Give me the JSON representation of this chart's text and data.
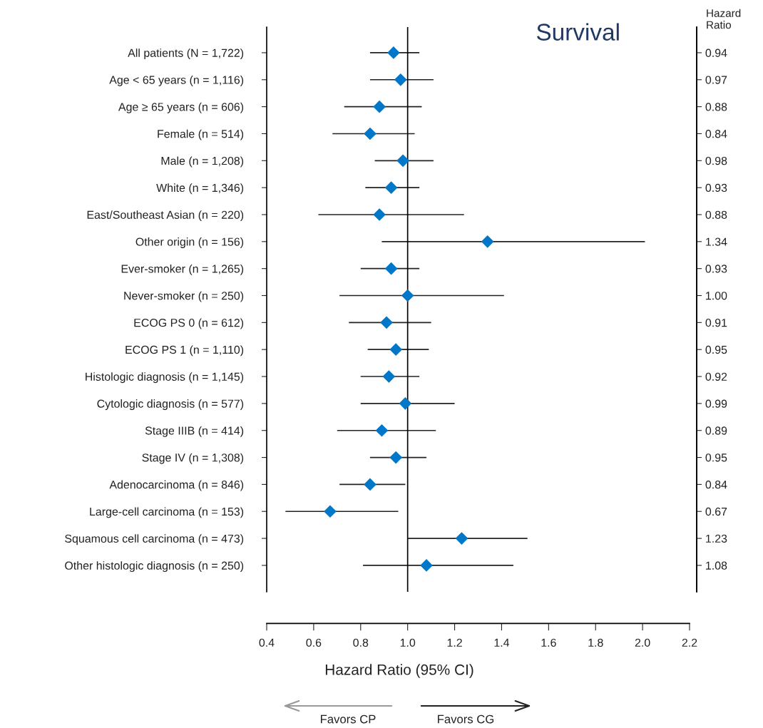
{
  "chart_data": {
    "type": "scatter",
    "orientation": "horizontal",
    "title": "Survival",
    "xlabel": "Hazard Ratio (95% CI)",
    "y2label": "Hazard\nRatio",
    "categories": [
      "All patients (N = 1,722)",
      "Age < 65 years (n = 1,116)",
      "Age ≥ 65 years (n = 606)",
      "Female (n = 514)",
      "Male (n = 1,208)",
      "White (n = 1,346)",
      "East/Southeast Asian (n = 220)",
      "Other origin (n = 156)",
      "Ever-smoker (n = 1,265)",
      "Never-smoker (n = 250)",
      "ECOG PS 0 (n = 612)",
      "ECOG PS 1 (n = 1,110)",
      "Histologic diagnosis (n = 1,145)",
      "Cytologic diagnosis (n = 577)",
      "Stage IIIB (n = 414)",
      "Stage IV (n = 1,308)",
      "Adenocarcinoma (n = 846)",
      "Large-cell carcinoma (n = 153)",
      "Squamous cell carcinoma (n = 473)",
      "Other histologic diagnosis (n = 250)"
    ],
    "values": [
      0.94,
      0.97,
      0.88,
      0.84,
      0.98,
      0.93,
      0.88,
      1.34,
      0.93,
      1.0,
      0.91,
      0.95,
      0.92,
      0.99,
      0.89,
      0.95,
      0.84,
      0.67,
      1.23,
      1.08
    ],
    "value_labels": [
      "0.94",
      "0.97",
      "0.88",
      "0.84",
      "0.98",
      "0.93",
      "0.88",
      "1.34",
      "0.93",
      "1.00",
      "0.91",
      "0.95",
      "0.92",
      "0.99",
      "0.89",
      "0.95",
      "0.84",
      "0.67",
      "1.23",
      "1.08"
    ],
    "errors": [
      [
        0.84,
        1.05
      ],
      [
        0.84,
        1.11
      ],
      [
        0.73,
        1.06
      ],
      [
        0.68,
        1.03
      ],
      [
        0.86,
        1.11
      ],
      [
        0.82,
        1.05
      ],
      [
        0.62,
        1.24
      ],
      [
        0.89,
        2.01
      ],
      [
        0.8,
        1.05
      ],
      [
        0.71,
        1.41
      ],
      [
        0.75,
        1.1
      ],
      [
        0.83,
        1.09
      ],
      [
        0.8,
        1.05
      ],
      [
        0.8,
        1.2
      ],
      [
        0.7,
        1.12
      ],
      [
        0.84,
        1.08
      ],
      [
        0.71,
        0.99
      ],
      [
        0.48,
        0.96
      ],
      [
        1.0,
        1.51
      ],
      [
        0.81,
        1.45
      ]
    ],
    "color": "#0077c8",
    "marker": "diamond",
    "xlim": [
      0.4,
      2.2
    ],
    "xticks": [
      {
        "value": 0.4,
        "label": "0.4"
      },
      {
        "value": 0.6,
        "label": "0.6"
      },
      {
        "value": 0.8,
        "label": "0.8"
      },
      {
        "value": 1.0,
        "label": "1.0"
      },
      {
        "value": 1.2,
        "label": "1.2"
      },
      {
        "value": 1.4,
        "label": "1.4"
      },
      {
        "value": 1.6,
        "label": "1.6"
      },
      {
        "value": 1.8,
        "label": "1.8"
      },
      {
        "value": 2.0,
        "label": "2.0"
      },
      {
        "value": 2.2,
        "label": "2.2"
      }
    ],
    "ref_lines": [
      {
        "axis": "x",
        "value": 1.0,
        "color": "#000000"
      }
    ],
    "annotations": [
      "Favors CP",
      "Favors CG"
    ],
    "grid": false,
    "legend": false
  }
}
